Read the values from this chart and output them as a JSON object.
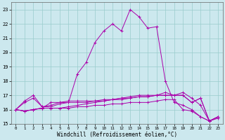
{
  "xlabel": "Windchill (Refroidissement éolien,°C)",
  "background_color": "#cce8ee",
  "grid_color": "#99cccc",
  "line_color": "#aa00aa",
  "x": [
    0,
    1,
    2,
    3,
    4,
    5,
    6,
    7,
    8,
    9,
    10,
    11,
    12,
    13,
    14,
    15,
    16,
    17,
    18,
    19,
    20,
    21,
    22,
    23
  ],
  "series": [
    [
      16.0,
      16.5,
      16.8,
      16.2,
      16.2,
      16.4,
      16.5,
      18.5,
      19.3,
      20.7,
      21.5,
      22.0,
      21.5,
      23.0,
      22.5,
      21.7,
      21.8,
      18.0,
      16.5,
      16.3,
      16.0,
      15.5,
      15.2,
      15.5
    ],
    [
      16.0,
      16.6,
      17.0,
      16.2,
      16.3,
      16.5,
      16.5,
      16.5,
      16.5,
      16.6,
      16.6,
      16.7,
      16.7,
      16.8,
      16.9,
      16.9,
      17.0,
      17.2,
      17.0,
      17.2,
      16.8,
      16.3,
      15.2,
      15.5
    ],
    [
      16.0,
      15.9,
      16.0,
      16.1,
      16.5,
      16.5,
      16.6,
      16.6,
      16.6,
      16.6,
      16.7,
      16.7,
      16.8,
      16.8,
      16.9,
      16.9,
      17.0,
      17.0,
      17.0,
      17.0,
      16.5,
      16.8,
      15.2,
      15.5
    ],
    [
      16.0,
      15.9,
      16.0,
      16.1,
      16.1,
      16.1,
      16.2,
      16.3,
      16.4,
      16.5,
      16.6,
      16.7,
      16.8,
      16.9,
      17.0,
      17.0,
      17.0,
      17.0,
      17.0,
      17.0,
      16.5,
      16.8,
      15.2,
      15.5
    ],
    [
      16.0,
      15.9,
      16.0,
      16.1,
      16.1,
      16.1,
      16.1,
      16.2,
      16.2,
      16.3,
      16.3,
      16.4,
      16.4,
      16.5,
      16.5,
      16.5,
      16.6,
      16.7,
      16.7,
      16.0,
      15.9,
      15.5,
      15.2,
      15.4
    ]
  ],
  "ylim": [
    15.0,
    23.5
  ],
  "xlim": [
    -0.5,
    23.5
  ],
  "yticks": [
    15,
    16,
    17,
    18,
    19,
    20,
    21,
    22,
    23
  ],
  "xticks": [
    0,
    1,
    2,
    3,
    4,
    5,
    6,
    7,
    8,
    9,
    10,
    11,
    12,
    13,
    14,
    15,
    16,
    17,
    18,
    19,
    20,
    21,
    22,
    23
  ],
  "xlabel_fontsize": 5.5,
  "tick_fontsize": 5.0,
  "linewidth": 0.7,
  "markersize": 2.5
}
